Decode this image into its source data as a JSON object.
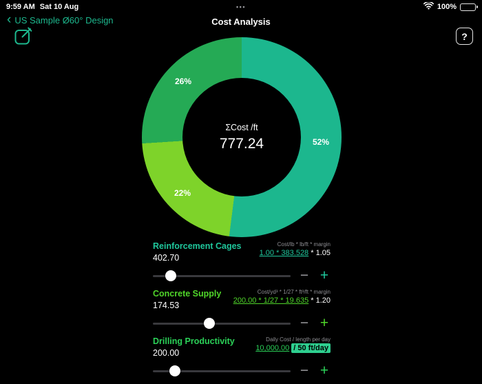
{
  "status_bar": {
    "time": "9:59 AM",
    "date": "Sat 10 Aug",
    "menu_dots": "•••",
    "battery_pct": "100%"
  },
  "nav": {
    "back_chevron": "‹",
    "back_label": "US Sample Ø60° Design",
    "title": "Cost Analysis",
    "help_label": "?",
    "accent_teal": "#1db88e"
  },
  "chart_data": {
    "type": "pie",
    "donut": true,
    "center_label": "ΣCost /ft",
    "center_value": "777.24",
    "total": 777.24,
    "slices": [
      {
        "name": "Reinforcement Cages",
        "pct": 52,
        "pct_label": "52%",
        "value": 402.7,
        "color": "#1cb78e"
      },
      {
        "name": "Concrete Supply",
        "pct": 22,
        "pct_label": "22%",
        "value": 174.53,
        "color": "#7ed32a"
      },
      {
        "name": "Drilling Productivity",
        "pct": 26,
        "pct_label": "26%",
        "value": 200.0,
        "color": "#25aa55"
      }
    ]
  },
  "controls": {
    "minus": "−",
    "plus": "+"
  },
  "rows": [
    {
      "name": "Reinforcement Cages",
      "value": "402.70",
      "formula_label": "Cost/lb * lb/ft * margin",
      "formula_link": "1.00 * 383.528",
      "formula_suffix": " * 1.05",
      "accent": "#1fc79c",
      "slider_pct": 13
    },
    {
      "name": "Concrete Supply",
      "value": "174.53",
      "formula_label": "Cost/yd³ * 1/27 * ft³/ft * margin",
      "formula_link": "200.00 * 1/27 * 19.635",
      "formula_suffix": " * 1.20",
      "accent": "#50d62a",
      "slider_pct": 41
    },
    {
      "name": "Drilling Productivity",
      "value": "200.00",
      "formula_label": "Daily Cost / length per day",
      "formula_link": "10,000.00",
      "formula_highlight": "/ 50 ft/day",
      "accent": "#2bd158",
      "highlight_bg": "#2ecf8f",
      "slider_pct": 16
    }
  ]
}
